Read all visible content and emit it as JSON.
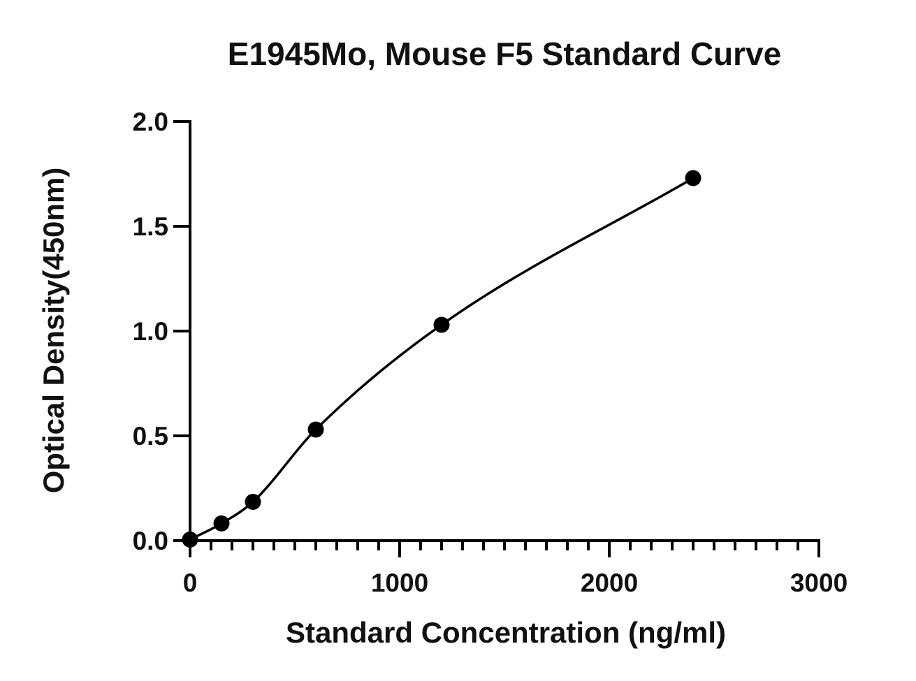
{
  "chart_data": {
    "type": "scatter",
    "title": "E1945Mo, Mouse F5 Standard Curve",
    "xlabel": "Standard Concentration (ng/ml)",
    "ylabel": "Optical Density(450nm)",
    "xlim": [
      0,
      3000
    ],
    "ylim": [
      0,
      2.0
    ],
    "x_ticks": [
      "0",
      "1000",
      "2000",
      "3000"
    ],
    "y_ticks": [
      "0.0",
      "0.5",
      "1.0",
      "1.5",
      "2.0"
    ],
    "x_tick_values": [
      0,
      1000,
      2000,
      3000
    ],
    "y_tick_values": [
      0,
      0.5,
      1.0,
      1.5,
      2.0
    ],
    "x_minor_step": 100,
    "y_minor_step": 0.1,
    "grid": false,
    "legend": "none",
    "series": [
      {
        "x": [
          0,
          150,
          300,
          600,
          1200,
          2400
        ],
        "y": [
          0.005,
          0.082,
          0.185,
          0.53,
          1.03,
          1.73
        ],
        "marker": "circle",
        "fit_curve": true
      }
    ]
  }
}
